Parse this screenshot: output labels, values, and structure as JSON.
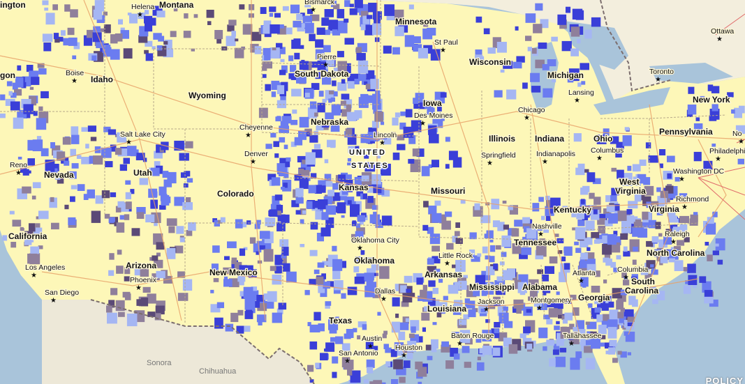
{
  "map": {
    "colors": {
      "land": "#fdf7b8",
      "water": "#a9c4da",
      "mexico": "#ede8d8",
      "blue_light": "#a5b6f3",
      "blue_mid": "#6b7cf0",
      "blue_dark": "#3a3fd8",
      "purple_gray": "#8f7f9b",
      "purple_dark": "#5b4a77"
    },
    "states": [
      {
        "name": "Oregon",
        "text": "gon"
      },
      {
        "name": "Idaho",
        "text": "Idaho"
      },
      {
        "name": "Montana",
        "text": "Montana"
      },
      {
        "name": "Wyoming",
        "text": "Wyoming"
      },
      {
        "name": "South Dakota",
        "text": "South Dakota"
      },
      {
        "name": "Minnesota",
        "text": "Minnesota"
      },
      {
        "name": "Wisconsin",
        "text": "Wisconsin"
      },
      {
        "name": "Michigan",
        "text": "Michigan"
      },
      {
        "name": "Iowa",
        "text": "Iowa"
      },
      {
        "name": "Nebraska",
        "text": "Nebraska"
      },
      {
        "name": "Nevada",
        "text": "Nevada"
      },
      {
        "name": "Utah",
        "text": "Utah"
      },
      {
        "name": "Colorado",
        "text": "Colorado"
      },
      {
        "name": "Kansas",
        "text": "Kansas"
      },
      {
        "name": "Missouri",
        "text": "Missouri"
      },
      {
        "name": "Illinois",
        "text": "Illinois"
      },
      {
        "name": "Indiana",
        "text": "Indiana"
      },
      {
        "name": "Ohio",
        "text": "Ohio"
      },
      {
        "name": "Pennsylvania",
        "text": "Pennsylvania"
      },
      {
        "name": "New York",
        "text": "New York"
      },
      {
        "name": "California",
        "text": "California"
      },
      {
        "name": "Arizona",
        "text": "Arizona"
      },
      {
        "name": "New Mexico",
        "text": "New Mexico"
      },
      {
        "name": "Oklahoma",
        "text": "Oklahoma"
      },
      {
        "name": "Arkansas",
        "text": "Arkansas"
      },
      {
        "name": "Tennessee",
        "text": "Tennessee"
      },
      {
        "name": "Kentucky",
        "text": "Kentucky"
      },
      {
        "name": "West Virginia line 1",
        "text": "West"
      },
      {
        "name": "West Virginia line 2",
        "text": "Virginia"
      },
      {
        "name": "Virginia",
        "text": "Virginia"
      },
      {
        "name": "North Carolina",
        "text": "North Carolina"
      },
      {
        "name": "South Carolina line 1",
        "text": "South"
      },
      {
        "name": "South Carolina line 2",
        "text": "Carolina"
      },
      {
        "name": "Georgia",
        "text": "Georgia"
      },
      {
        "name": "Alabama",
        "text": "Alabama"
      },
      {
        "name": "Mississippi",
        "text": "Mississippi"
      },
      {
        "name": "Louisiana",
        "text": "Louisiana"
      },
      {
        "name": "Texas",
        "text": "Texas"
      },
      {
        "name": "Washington partial",
        "text": "ington"
      }
    ],
    "cities": [
      "Helena",
      "Bismarck",
      "St Paul",
      "Pierre",
      "Boise",
      "Ottawa",
      "Toronto",
      "Lansing",
      "Chicago",
      "Des Moines",
      "Cheyenne",
      "Salt Lake City",
      "Denver",
      "Lincoln",
      "Springfield",
      "Indianapolis",
      "Columbus",
      "Philadelphia",
      "Washington DC",
      "Reno",
      "Richmond",
      "Nashville",
      "Raleigh",
      "Oklahoma City",
      "Little Rock",
      "Atlanta",
      "Columbia",
      "Los Angeles",
      "Phoenix",
      "San Diego",
      "Montgomery",
      "Jackson",
      "Dallas",
      "Austin",
      "Houston",
      "San Antonio",
      "Baton Rouge",
      "Tallahassee",
      "No"
    ],
    "country_label": [
      "UNITED",
      "STATES"
    ],
    "mexico_places": [
      "Sonora",
      "Chihuahua"
    ],
    "brand": "POLICY"
  }
}
